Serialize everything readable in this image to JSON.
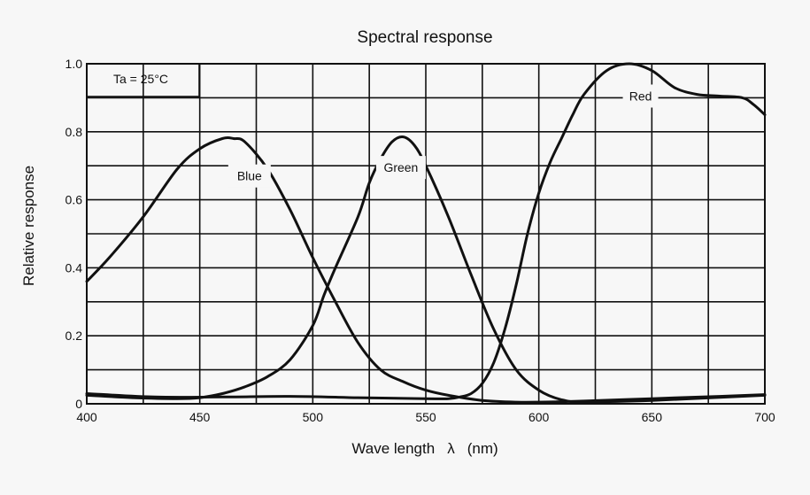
{
  "chart_data": {
    "type": "line",
    "title": "Spectral response",
    "xlabel": "Wave length λ (nm)",
    "xlabel_parts": [
      "Wave length",
      "λ",
      "(nm)"
    ],
    "ylabel": "Relative response",
    "xlim": [
      400,
      700
    ],
    "ylim": [
      0,
      1.0
    ],
    "xticks": [
      400,
      450,
      500,
      550,
      600,
      650,
      700
    ],
    "xtick_labels": [
      "400",
      "450",
      "500",
      "550",
      "600",
      "650",
      "700"
    ],
    "yticks": [
      0,
      0.2,
      0.4,
      0.6,
      0.8,
      1.0
    ],
    "ytick_labels": [
      "0",
      "0.2",
      "0.4",
      "0.6",
      "0.8",
      "1.0"
    ],
    "grid": true,
    "annotation": "Ta = 25°C",
    "series": [
      {
        "name": "Blue",
        "x": [
          400,
          410,
          425,
          440,
          450,
          460,
          465,
          470,
          480,
          490,
          500,
          510,
          520,
          530,
          540,
          550,
          560,
          575,
          590,
          600,
          620,
          650,
          680,
          700
        ],
        "y": [
          0.36,
          0.43,
          0.55,
          0.69,
          0.75,
          0.78,
          0.78,
          0.77,
          0.69,
          0.57,
          0.43,
          0.3,
          0.18,
          0.1,
          0.065,
          0.04,
          0.025,
          0.01,
          0.005,
          0.005,
          0.008,
          0.015,
          0.022,
          0.027
        ]
      },
      {
        "name": "Green",
        "x": [
          400,
          420,
          440,
          450,
          460,
          470,
          480,
          490,
          500,
          505,
          510,
          520,
          525,
          530,
          535,
          540,
          545,
          550,
          560,
          570,
          580,
          590,
          600,
          610,
          620,
          650,
          700
        ],
        "y": [
          0.025,
          0.018,
          0.015,
          0.018,
          0.03,
          0.05,
          0.08,
          0.13,
          0.23,
          0.32,
          0.4,
          0.55,
          0.65,
          0.72,
          0.77,
          0.785,
          0.76,
          0.7,
          0.55,
          0.38,
          0.22,
          0.1,
          0.04,
          0.012,
          0.006,
          0.01,
          0.025
        ]
      },
      {
        "name": "Red",
        "x": [
          400,
          430,
          460,
          490,
          520,
          550,
          560,
          565,
          570,
          575,
          580,
          585,
          590,
          595,
          600,
          605,
          610,
          615,
          620,
          630,
          640,
          650,
          660,
          670,
          680,
          690,
          695,
          700
        ],
        "y": [
          0.03,
          0.02,
          0.02,
          0.022,
          0.018,
          0.015,
          0.015,
          0.02,
          0.03,
          0.06,
          0.12,
          0.22,
          0.35,
          0.5,
          0.62,
          0.71,
          0.78,
          0.85,
          0.91,
          0.98,
          1.0,
          0.98,
          0.93,
          0.91,
          0.905,
          0.9,
          0.88,
          0.85
        ]
      }
    ]
  }
}
